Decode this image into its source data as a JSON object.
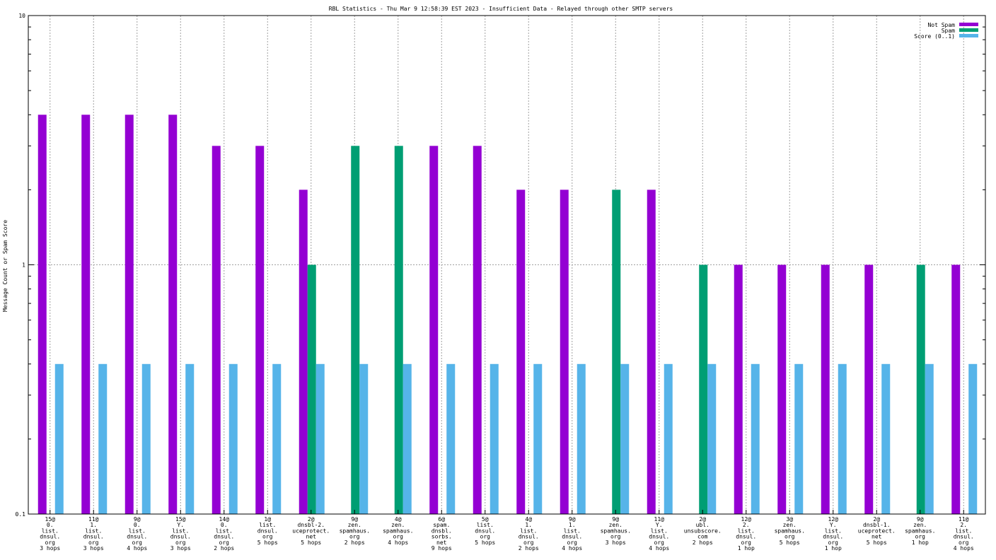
{
  "chart_data": {
    "type": "bar",
    "title": "RBL Statistics - Thu Mar  9 12:58:39 EST 2023 - Insufficient Data - Relayed through other SMTP servers",
    "ylabel": "Message Count or Spam Score",
    "xlabel": "",
    "yscale": "log",
    "ylim": [
      0.1,
      10
    ],
    "yticks": [
      "0.1",
      "1",
      "10"
    ],
    "grid": true,
    "legend_position": "top-right",
    "categories": [
      [
        "15@",
        "0.",
        "list.",
        "dnsul.",
        "org",
        "3 hops"
      ],
      [
        "11@",
        "1.",
        "list.",
        "dnsul.",
        "org",
        "3 hops"
      ],
      [
        "9@",
        "0.",
        "list.",
        "dnsul.",
        "org",
        "4 hops"
      ],
      [
        "15@",
        "Y.",
        "list.",
        "dnsul.",
        "org",
        "3 hops"
      ],
      [
        "14@",
        "0.",
        "list.",
        "dnsul.",
        "org",
        "2 hops"
      ],
      [
        "1@",
        "list.",
        "dnsul.",
        "org",
        "5 hops"
      ],
      [
        "2@",
        "dnsbl-2.",
        "uceprotect.",
        "net",
        "5 hops"
      ],
      [
        "9@",
        "zen.",
        "spamhaus.",
        "org",
        "2 hops"
      ],
      [
        "4@",
        "zen.",
        "spamhaus.",
        "org",
        "4 hops"
      ],
      [
        "6@",
        "spam.",
        "dnsbl.",
        "sorbs.",
        "net",
        "9 hops"
      ],
      [
        "5@",
        "list.",
        "dnsul.",
        "org",
        "5 hops"
      ],
      [
        "4@",
        "1.",
        "list.",
        "dnsul.",
        "org",
        "2 hops"
      ],
      [
        "9@",
        "1.",
        "list.",
        "dnsul.",
        "org",
        "4 hops"
      ],
      [
        "9@",
        "zen.",
        "spamhaus.",
        "org",
        "3 hops"
      ],
      [
        "11@",
        "Y.",
        "list.",
        "dnsul.",
        "org",
        "4 hops"
      ],
      [
        "2@",
        "ubl.",
        "unsubscore.",
        "com",
        "2 hops"
      ],
      [
        "12@",
        "2.",
        "list.",
        "dnsul.",
        "org",
        "1 hop"
      ],
      [
        "3@",
        "zen.",
        "spamhaus.",
        "org",
        "5 hops"
      ],
      [
        "12@",
        "Y.",
        "list.",
        "dnsul.",
        "org",
        "1 hop"
      ],
      [
        "2@",
        "dnsbl-1.",
        "uceprotect.",
        "net",
        "5 hops"
      ],
      [
        "9@",
        "zen.",
        "spamhaus.",
        "org",
        "1 hop"
      ],
      [
        "11@",
        "2.",
        "list.",
        "dnsul.",
        "org",
        "4 hops"
      ]
    ],
    "series": [
      {
        "name": "Not Spam",
        "color": "#9400d3",
        "values": [
          4,
          4,
          4,
          4,
          3,
          3,
          2,
          0,
          0,
          3,
          3,
          2,
          2,
          0,
          2,
          0,
          1,
          1,
          1,
          1,
          0,
          1
        ]
      },
      {
        "name": "Spam",
        "color": "#009e73",
        "values": [
          0,
          0,
          0,
          0,
          0,
          0,
          1,
          3,
          3,
          0,
          0,
          0,
          0,
          2,
          0,
          1,
          0,
          0,
          0,
          0,
          1,
          0
        ]
      },
      {
        "name": "Score (0..1)",
        "color": "#56b4e9",
        "values": [
          0.4,
          0.4,
          0.4,
          0.4,
          0.4,
          0.4,
          0.4,
          0.4,
          0.4,
          0.4,
          0.4,
          0.4,
          0.4,
          0.4,
          0.4,
          0.4,
          0.4,
          0.4,
          0.4,
          0.4,
          0.4,
          0.4
        ]
      }
    ]
  }
}
